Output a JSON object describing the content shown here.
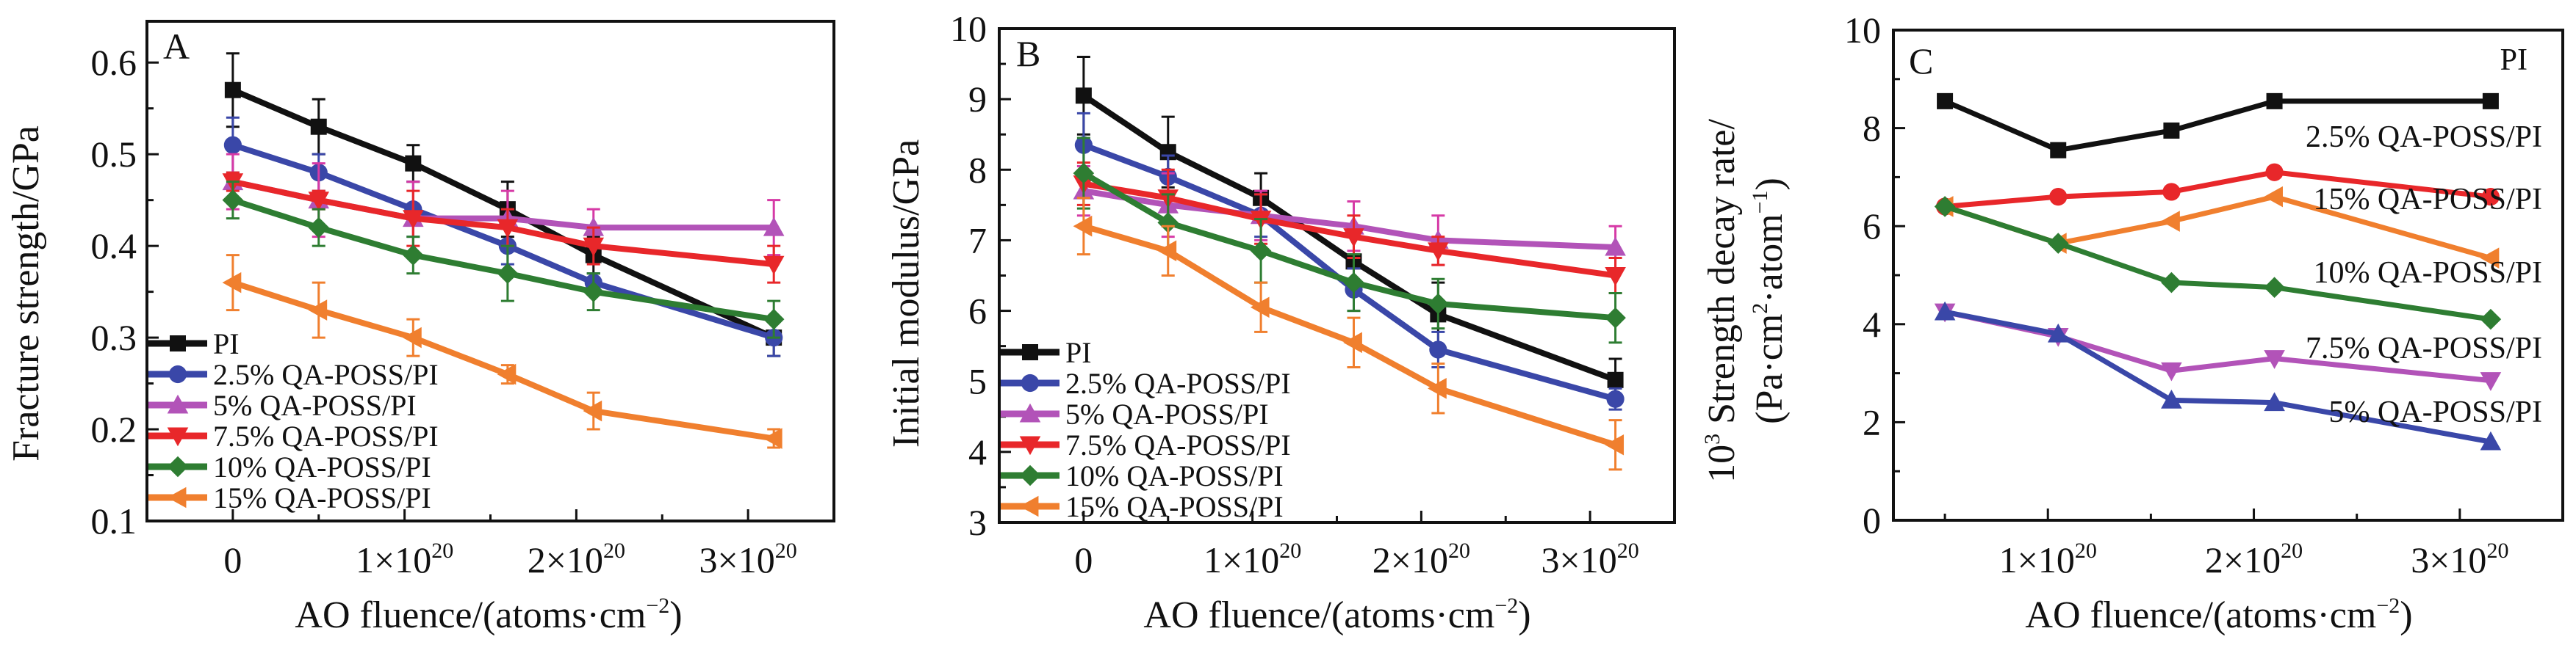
{
  "chart_data": [
    {
      "panel": "A",
      "type": "line",
      "title": "",
      "xlabel": "AO fluence/(atoms·cm⁻²)",
      "ylabel": "Fracture strength/GPa",
      "xlim": [
        -0.5,
        3.5
      ],
      "ylim": [
        0.1,
        0.645
      ],
      "x_unit_exponent": 20,
      "xticks": [
        {
          "v": 0,
          "label": "0"
        },
        {
          "v": 1,
          "label": "1×10",
          "sup": "20"
        },
        {
          "v": 2,
          "label": "2×10",
          "sup": "20"
        },
        {
          "v": 3,
          "label": "3×10",
          "sup": "20"
        }
      ],
      "xminor": [
        0.5,
        1.5,
        2.5
      ],
      "yticks": [
        0.1,
        0.2,
        0.3,
        0.4,
        0.5,
        0.6
      ],
      "ytick_labels": [
        "0.1",
        "0.2",
        "0.3",
        "0.4",
        "0.5",
        "0.6"
      ],
      "yminor": [
        0.15,
        0.25,
        0.35,
        0.45,
        0.55
      ],
      "legend_position": "bottom-left",
      "grid": false,
      "x": [
        0,
        0.5,
        1.05,
        1.6,
        2.1,
        3.15
      ],
      "series": [
        {
          "name": "PI",
          "color": "#111111",
          "marker": "square",
          "values": [
            0.57,
            0.53,
            0.49,
            0.44,
            0.39,
            0.3
          ],
          "errors": [
            0.04,
            0.03,
            0.02,
            0.03,
            0.02,
            0.02
          ]
        },
        {
          "name": "2.5% QA-POSS/PI",
          "color": "#3a47a8",
          "marker": "circle",
          "values": [
            0.51,
            0.48,
            0.44,
            0.4,
            0.36,
            0.3
          ],
          "errors": [
            0.03,
            0.02,
            0.03,
            0.02,
            0.01,
            0.02
          ]
        },
        {
          "name": "5% QA-POSS/PI",
          "color": "#b253b8",
          "marker": "triangle-up",
          "values": [
            0.47,
            0.45,
            0.43,
            0.43,
            0.42,
            0.42
          ],
          "errors": [
            0.03,
            0.04,
            0.04,
            0.03,
            0.02,
            0.03
          ]
        },
        {
          "name": "7.5% QA-POSS/PI",
          "color": "#e8272a",
          "marker": "triangle-down",
          "values": [
            0.47,
            0.45,
            0.43,
            0.42,
            0.4,
            0.38
          ],
          "errors": [
            0.01,
            0.01,
            0.03,
            0.02,
            0.02,
            0.02
          ]
        },
        {
          "name": "10% QA-POSS/PI",
          "color": "#2e7d32",
          "marker": "diamond",
          "values": [
            0.45,
            0.42,
            0.39,
            0.37,
            0.35,
            0.32
          ],
          "errors": [
            0.02,
            0.02,
            0.02,
            0.03,
            0.02,
            0.02
          ]
        },
        {
          "name": "15% QA-POSS/PI",
          "color": "#f07f2e",
          "marker": "triangle-left",
          "values": [
            0.36,
            0.33,
            0.3,
            0.26,
            0.22,
            0.19
          ],
          "errors": [
            0.03,
            0.03,
            0.02,
            0.01,
            0.02,
            0.01
          ]
        }
      ]
    },
    {
      "panel": "B",
      "type": "line",
      "title": "",
      "xlabel": "AO fluence/(atoms·cm⁻²)",
      "ylabel": "Initial modulus/GPa",
      "xlim": [
        -0.5,
        3.5
      ],
      "ylim": [
        3,
        10
      ],
      "x_unit_exponent": 20,
      "xticks": [
        {
          "v": 0,
          "label": "0"
        },
        {
          "v": 1,
          "label": "1×10",
          "sup": "20"
        },
        {
          "v": 2,
          "label": "2×10",
          "sup": "20"
        },
        {
          "v": 3,
          "label": "3×10",
          "sup": "20"
        }
      ],
      "xminor": [
        0.5,
        1.5,
        2.5
      ],
      "yticks": [
        3,
        4,
        5,
        6,
        7,
        8,
        9,
        10
      ],
      "ytick_labels": [
        "3",
        "4",
        "5",
        "6",
        "7",
        "8",
        "9",
        "10"
      ],
      "yminor": [
        3.5,
        4.5,
        5.5,
        6.5,
        7.5,
        8.5,
        9.5
      ],
      "legend_position": "bottom-left",
      "grid": false,
      "x": [
        0,
        0.5,
        1.05,
        1.6,
        2.1,
        3.15
      ],
      "series": [
        {
          "name": "PI",
          "color": "#111111",
          "marker": "square",
          "values": [
            9.05,
            8.25,
            7.6,
            6.7,
            5.95,
            5.02
          ],
          "errors": [
            0.55,
            0.5,
            0.35,
            0.35,
            0.45,
            0.3
          ]
        },
        {
          "name": "2.5% QA-POSS/PI",
          "color": "#3a47a8",
          "marker": "circle",
          "values": [
            8.35,
            7.9,
            7.35,
            6.3,
            5.45,
            4.75
          ],
          "errors": [
            0.45,
            0.3,
            0.3,
            0.3,
            0.25,
            0.15
          ]
        },
        {
          "name": "5% QA-POSS/PI",
          "color": "#b253b8",
          "marker": "triangle-up",
          "values": [
            7.7,
            7.5,
            7.35,
            7.2,
            7.0,
            6.9
          ],
          "errors": [
            0.35,
            0.45,
            0.35,
            0.35,
            0.35,
            0.3
          ]
        },
        {
          "name": "7.5% QA-POSS/PI",
          "color": "#e8272a",
          "marker": "triangle-down",
          "values": [
            7.8,
            7.6,
            7.3,
            7.05,
            6.85,
            6.5
          ],
          "errors": [
            0.3,
            0.4,
            0.35,
            0.3,
            0.2,
            0.25
          ]
        },
        {
          "name": "10% QA-POSS/PI",
          "color": "#2e7d32",
          "marker": "diamond",
          "values": [
            7.95,
            7.25,
            6.85,
            6.4,
            6.1,
            5.9
          ],
          "errors": [
            0.5,
            0.4,
            0.45,
            0.4,
            0.35,
            0.35
          ]
        },
        {
          "name": "15% QA-POSS/PI",
          "color": "#f07f2e",
          "marker": "triangle-left",
          "values": [
            7.2,
            6.85,
            6.05,
            5.55,
            4.9,
            4.1
          ],
          "errors": [
            0.4,
            0.35,
            0.35,
            0.35,
            0.35,
            0.35
          ]
        }
      ]
    },
    {
      "panel": "C",
      "type": "line",
      "title": "",
      "xlabel": "AO fluence/(atoms·cm⁻²)",
      "ylabel_line1": "10³ Strength decay rate/",
      "ylabel_line2": "(Pa·cm²·atom⁻¹)",
      "xlim": [
        0.25,
        3.5
      ],
      "ylim": [
        0,
        10
      ],
      "x_unit_exponent": 20,
      "xticks": [
        {
          "v": 1,
          "label": "1×10",
          "sup": "20"
        },
        {
          "v": 2,
          "label": "2×10",
          "sup": "20"
        },
        {
          "v": 3,
          "label": "3×10",
          "sup": "20"
        }
      ],
      "xminor": [
        0.5,
        1.5,
        2.5
      ],
      "yticks": [
        0,
        2,
        4,
        6,
        8,
        10
      ],
      "ytick_labels": [
        "0",
        "2",
        "4",
        "6",
        "8",
        "10"
      ],
      "yminor": [
        1,
        3,
        5,
        7,
        9
      ],
      "legend_position": "inline-right",
      "grid": false,
      "x": [
        0.5,
        1.05,
        1.6,
        2.1,
        3.15
      ],
      "series": [
        {
          "name": "PI",
          "color": "#111111",
          "marker": "square",
          "values": [
            8.55,
            7.55,
            7.95,
            8.55,
            8.55
          ]
        },
        {
          "name": "7.5% QA-POSS/PI",
          "color": "#e8272a",
          "marker": "circle",
          "values": [
            6.4,
            6.6,
            6.7,
            7.1,
            6.6
          ]
        },
        {
          "name": "15% QA-POSS/PI",
          "color": "#f07f2e",
          "marker": "triangle-left",
          "values": [
            6.4,
            5.65,
            6.1,
            6.6,
            5.35
          ]
        },
        {
          "name": "10% QA-POSS/PI",
          "color": "#2e7d32",
          "marker": "diamond",
          "values": [
            6.4,
            5.65,
            4.85,
            4.75,
            4.1
          ]
        },
        {
          "name": "5% QA-POSS/PI",
          "color": "#b253b8",
          "marker": "triangle-down",
          "values": [
            4.25,
            3.75,
            3.05,
            3.3,
            2.85
          ]
        },
        {
          "name": "2.5% QA-POSS/PI",
          "color": "#3a47a8",
          "marker": "triangle-up",
          "values": [
            4.25,
            3.8,
            2.45,
            2.4,
            1.6
          ]
        }
      ],
      "annotations": [
        "PI",
        "2.5% QA-POSS/PI",
        "15% QA-POSS/PI",
        "10% QA-POSS/PI",
        "7.5% QA-POSS/PI",
        "5% QA-POSS/PI"
      ]
    }
  ],
  "panels": {
    "a": {
      "letter": "A",
      "ylabel": "Fracture strength/GPa",
      "xlabel": "AO fluence/(atoms·cm",
      "xlabel_sup": "−2",
      "xlabel_end": ")"
    },
    "b": {
      "letter": "B",
      "ylabel": "Initial modulus/GPa",
      "xlabel": "AO fluence/(atoms·cm",
      "xlabel_sup": "−2",
      "xlabel_end": ")"
    },
    "c": {
      "letter": "C",
      "ylabel_pre": "10",
      "ylabel_pre_sup": "3",
      "ylabel_line1": " Strength decay rate/",
      "ylabel_line2a": "(Pa·cm",
      "ylabel_line2_sup1": "2",
      "ylabel_line2b": "·atom",
      "ylabel_line2_sup2": "−1",
      "ylabel_line2c": ")",
      "xlabel": "AO fluence/(atoms·cm",
      "xlabel_sup": "−2",
      "xlabel_end": ")"
    }
  }
}
